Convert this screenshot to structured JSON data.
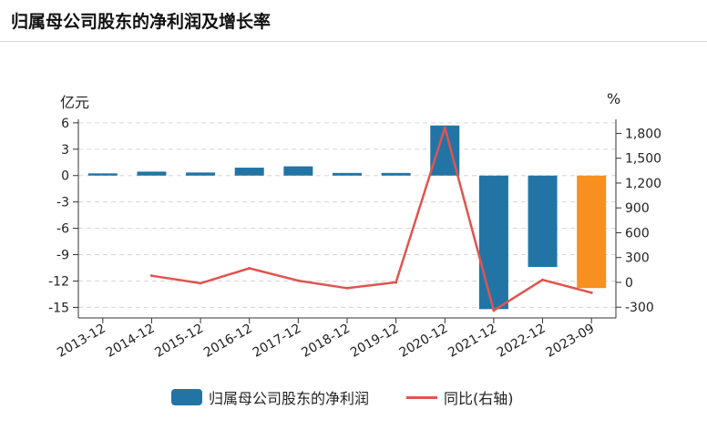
{
  "title": "归属母公司股东的净利润及增长率",
  "chart_data": {
    "type": "bar",
    "categories": [
      "2013-12",
      "2014-12",
      "2015-12",
      "2016-12",
      "2017-12",
      "2018-12",
      "2019-12",
      "2020-12",
      "2021-12",
      "2022-12",
      "2023-09"
    ],
    "left_axis": {
      "unit": "亿元",
      "ylim": [
        -16.2,
        6.4
      ],
      "ticks": [
        6,
        3,
        0,
        -3,
        -6,
        -9,
        -12,
        -15
      ]
    },
    "right_axis": {
      "unit": "%",
      "ylim": [
        -430,
        1970
      ],
      "ticks": [
        1800,
        1500,
        1200,
        900,
        600,
        300,
        0,
        -300
      ]
    },
    "series": [
      {
        "name": "归属母公司股东的净利润",
        "kind": "bar",
        "axis": "left",
        "values": [
          0.25,
          0.45,
          0.35,
          0.9,
          1.05,
          0.3,
          0.3,
          5.7,
          -15.2,
          -10.4,
          -12.8
        ],
        "color": "#2274a5",
        "highlight_color": "#f7901e",
        "highlight_index": 10
      },
      {
        "name": "同比(右轴)",
        "kind": "line",
        "axis": "right",
        "values": [
          null,
          80,
          -10,
          170,
          20,
          -70,
          0,
          1870,
          -340,
          30,
          -125
        ],
        "color": "#e0544f"
      }
    ],
    "grid": true,
    "legend_position": "bottom"
  }
}
